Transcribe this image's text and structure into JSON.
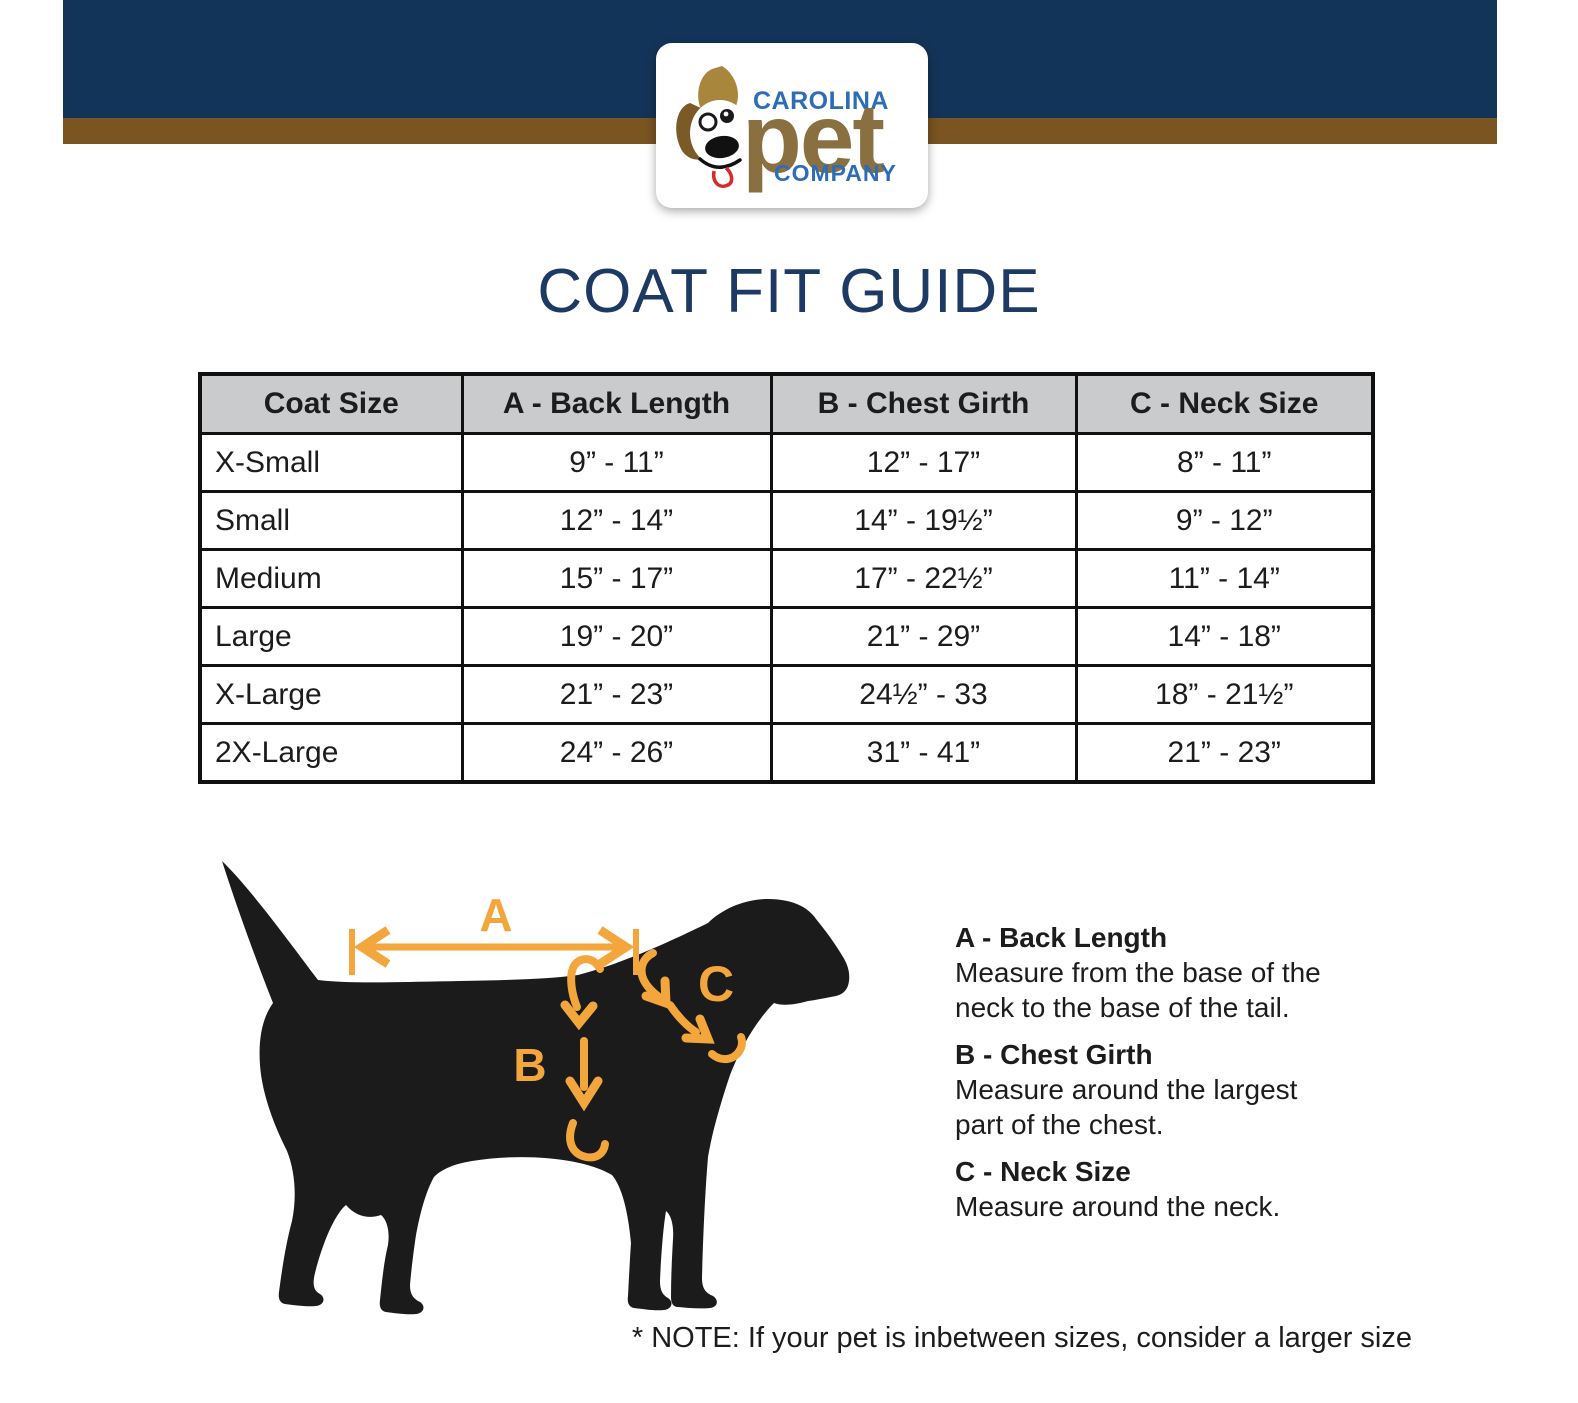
{
  "page": {
    "background": "#ffffff"
  },
  "header": {
    "bar_color": "#133459",
    "stripe_color": "#7a5421",
    "logo": {
      "line1": "CAROLINA",
      "line2": "pet",
      "line3": "COMPANY",
      "blue": "#2d6db7",
      "brown": "#8a7040"
    }
  },
  "title": "COAT FIT GUIDE",
  "size_table": {
    "header_bg": "#c9cbcd",
    "columns": [
      "Coat Size",
      "A - Back Length",
      "B - Chest Girth",
      "C - Neck Size"
    ],
    "rows": [
      [
        "X-Small",
        "9” - 11”",
        "12” - 17”",
        "8” - 11”"
      ],
      [
        "Small",
        "12” - 14”",
        "14” - 19½”",
        "9” - 12”"
      ],
      [
        "Medium",
        "15” - 17”",
        "17” - 22½”",
        "11” - 14”"
      ],
      [
        "Large",
        "19” - 20”",
        "21” - 29”",
        "14” - 18”"
      ],
      [
        "X-Large",
        "21” - 23”",
        "24½” - 33",
        "18” - 21½”"
      ],
      [
        "2X-Large",
        "24” - 26”",
        "31” - 41”",
        "21” - 23”"
      ]
    ]
  },
  "diagram": {
    "arrow_color": "#f2a63c",
    "silhouette_color": "#1b1b1b",
    "labels": {
      "a": "A",
      "b": "B",
      "c": "C"
    }
  },
  "legend": {
    "items": [
      {
        "heading": "A - Back Length",
        "lines": [
          "Measure from the base of the",
          "neck to the base of the tail."
        ]
      },
      {
        "heading": "B - Chest Girth",
        "lines": [
          "Measure around the largest",
          "part of the chest."
        ]
      },
      {
        "heading": "C - Neck Size",
        "lines": [
          "Measure around the neck."
        ]
      }
    ]
  },
  "note": "* NOTE: If your pet is inbetween sizes, consider a larger size"
}
